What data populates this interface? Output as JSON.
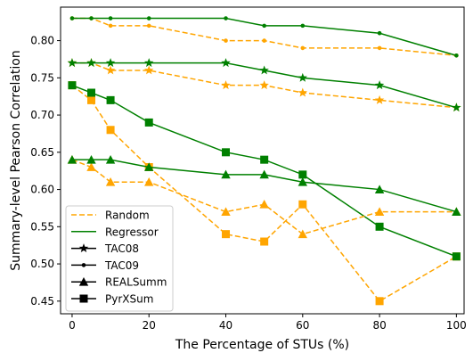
{
  "chart_data": {
    "type": "line",
    "title": "",
    "xlabel": "The Percentage of STUs (%)",
    "ylabel": "Summary-level Pearson Correlation",
    "xlim": [
      -3,
      102
    ],
    "ylim": [
      0.433,
      0.845
    ],
    "xticks": [
      0,
      20,
      40,
      60,
      80,
      100
    ],
    "yticks": [
      0.45,
      0.5,
      0.55,
      0.6,
      0.65,
      0.7,
      0.75,
      0.8
    ],
    "grid": false,
    "legend_position": "lower-left",
    "colors": {
      "Random": "#ffa500",
      "Regressor": "#008000"
    },
    "legend": [
      {
        "label": "Random",
        "kind": "line",
        "style": "dashed",
        "color": "#ffa500"
      },
      {
        "label": "Regressor",
        "kind": "line",
        "style": "solid",
        "color": "#008000"
      },
      {
        "label": "TAC08",
        "kind": "marker",
        "marker": "star",
        "color": "#000000"
      },
      {
        "label": "TAC09",
        "kind": "marker",
        "marker": "dot",
        "color": "#000000"
      },
      {
        "label": "REALSumm",
        "kind": "marker",
        "marker": "triangle",
        "color": "#000000"
      },
      {
        "label": "PyrXSum",
        "kind": "marker",
        "marker": "square",
        "color": "#000000"
      }
    ],
    "series": [
      {
        "method": "Random",
        "dataset": "TAC09",
        "marker": "dot",
        "x": [
          0,
          5,
          10,
          20,
          40,
          50,
          60,
          80,
          100
        ],
        "y": [
          0.83,
          0.83,
          0.82,
          0.82,
          0.8,
          0.8,
          0.79,
          0.79,
          0.78
        ]
      },
      {
        "method": "Regressor",
        "dataset": "TAC09",
        "marker": "dot",
        "x": [
          0,
          5,
          10,
          20,
          40,
          50,
          60,
          80,
          100
        ],
        "y": [
          0.83,
          0.83,
          0.83,
          0.83,
          0.83,
          0.82,
          0.82,
          0.81,
          0.78
        ]
      },
      {
        "method": "Random",
        "dataset": "TAC08",
        "marker": "star",
        "x": [
          0,
          5,
          10,
          20,
          40,
          50,
          60,
          80,
          100
        ],
        "y": [
          0.77,
          0.77,
          0.76,
          0.76,
          0.74,
          0.74,
          0.73,
          0.72,
          0.71
        ]
      },
      {
        "method": "Regressor",
        "dataset": "TAC08",
        "marker": "star",
        "x": [
          0,
          5,
          10,
          20,
          40,
          50,
          60,
          80,
          100
        ],
        "y": [
          0.77,
          0.77,
          0.77,
          0.77,
          0.77,
          0.76,
          0.75,
          0.74,
          0.71
        ]
      },
      {
        "method": "Random",
        "dataset": "PyrXSum",
        "marker": "square",
        "x": [
          0,
          5,
          10,
          20,
          40,
          50,
          60,
          80,
          100
        ],
        "y": [
          0.74,
          0.72,
          0.68,
          0.63,
          0.54,
          0.53,
          0.58,
          0.45,
          0.51
        ]
      },
      {
        "method": "Regressor",
        "dataset": "PyrXSum",
        "marker": "square",
        "x": [
          0,
          5,
          10,
          20,
          40,
          50,
          60,
          80,
          100
        ],
        "y": [
          0.74,
          0.73,
          0.72,
          0.69,
          0.65,
          0.64,
          0.62,
          0.55,
          0.51
        ]
      },
      {
        "method": "Random",
        "dataset": "REALSumm",
        "marker": "triangle",
        "x": [
          0,
          5,
          10,
          20,
          40,
          50,
          60,
          80,
          100
        ],
        "y": [
          0.64,
          0.63,
          0.61,
          0.61,
          0.57,
          0.58,
          0.54,
          0.57,
          0.57
        ]
      },
      {
        "method": "Regressor",
        "dataset": "REALSumm",
        "marker": "triangle",
        "x": [
          0,
          5,
          10,
          20,
          40,
          50,
          60,
          80,
          100
        ],
        "y": [
          0.64,
          0.64,
          0.64,
          0.63,
          0.62,
          0.62,
          0.61,
          0.6,
          0.57
        ]
      }
    ]
  }
}
